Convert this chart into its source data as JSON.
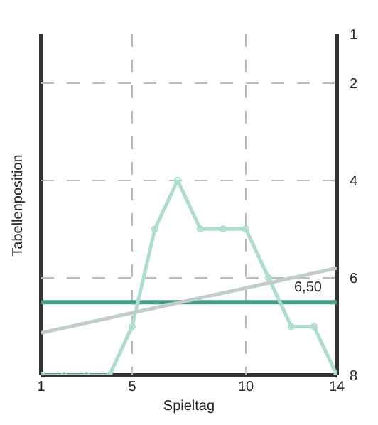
{
  "chart_data": {
    "type": "line",
    "xlabel": "Spieltag",
    "ylabel": "Tabellenposition",
    "x": [
      1,
      2,
      3,
      4,
      5,
      6,
      7,
      8,
      9,
      10,
      11,
      12,
      13,
      14
    ],
    "series": [
      {
        "color": "#aedcd0",
        "values": [
          8,
          8,
          8,
          8,
          7,
          5,
          4,
          5,
          5,
          5,
          6,
          7,
          7,
          8
        ]
      },
      {
        "type": "line",
        "color": "#c3cccc",
        "x": [
          1,
          14
        ],
        "values": [
          7.13,
          5.8
        ],
        "marker": "none"
      }
    ],
    "xlim": [
      1,
      14
    ],
    "xticks": [
      1,
      5,
      10,
      14
    ],
    "ylim": [
      8,
      1
    ],
    "yticks": [
      1,
      2,
      4,
      6,
      8
    ],
    "ref_lines": [
      {
        "axis": "y",
        "value": 6.5,
        "label": "6,50",
        "color": "#4a9a8a"
      }
    ],
    "grid": true,
    "marker": "circle"
  }
}
